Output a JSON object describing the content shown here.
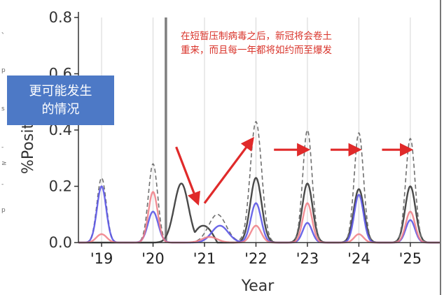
{
  "left_edge_chars": [
    "、",
    "p",
    "",
    "s",
    "-",
    "≥",
    "-",
    "p"
  ],
  "callout": {
    "line1": "更可能发生",
    "line2": "的情况"
  },
  "annotation": {
    "line1": "在短暂压制病毒之后，新冠将会卷土",
    "line2": "重来，而且每一年都将如约而至爆发"
  },
  "colors": {
    "gray": "#4a4a4a",
    "dashed": "#707070",
    "blue": "#5b57e6",
    "pink": "#f07b84",
    "arrow": "#e02a2a",
    "vline": "#7f7f7f",
    "callout_bg": "#4d79c6"
  },
  "chart_data": {
    "type": "line",
    "xlabel": "Year",
    "ylabel": "%Positive ILI",
    "xlim": [
      2018.55,
      2025.6
    ],
    "ylim": [
      0,
      0.8
    ],
    "y_ticks": [
      0.0,
      0.2,
      0.4,
      0.6,
      0.8
    ],
    "y_tick_labels": [
      "0.0",
      "0.2",
      "0.4",
      "0.6",
      "0.8"
    ],
    "x_ticks": [
      2019,
      2020,
      2021,
      2022,
      2023,
      2024,
      2025
    ],
    "x_tick_labels": [
      "'19",
      "'20",
      "'21",
      "'22",
      "'23",
      "'24",
      "'25"
    ],
    "vertical_marker": 2020.25,
    "grid": "vertical",
    "series": [
      {
        "color": "gray",
        "style": "solid",
        "peaks": [
          [
            2020.55,
            0.21,
            0.14
          ],
          [
            2022.0,
            0.23,
            0.11
          ],
          [
            2023.0,
            0.21,
            0.1
          ],
          [
            2024.0,
            0.19,
            0.1
          ],
          [
            2025.0,
            0.2,
            0.1
          ]
        ],
        "tail": [
          2020.7,
          2021.25,
          0.06
        ]
      },
      {
        "color": "dashed",
        "style": "dashed",
        "peaks": [
          [
            2019.0,
            0.23,
            0.09
          ],
          [
            2020.0,
            0.28,
            0.09
          ],
          [
            2021.25,
            0.1,
            0.17
          ],
          [
            2022.0,
            0.43,
            0.11
          ],
          [
            2023.0,
            0.4,
            0.09
          ],
          [
            2024.0,
            0.39,
            0.09
          ],
          [
            2025.0,
            0.37,
            0.09
          ]
        ]
      },
      {
        "color": "blue",
        "style": "solid",
        "peaks": [
          [
            2019.0,
            0.2,
            0.09
          ],
          [
            2020.0,
            0.11,
            0.1
          ],
          [
            2021.3,
            0.06,
            0.16
          ],
          [
            2022.0,
            0.14,
            0.1
          ],
          [
            2023.0,
            0.07,
            0.09
          ],
          [
            2024.0,
            0.17,
            0.09
          ],
          [
            2025.0,
            0.08,
            0.09
          ]
        ]
      },
      {
        "color": "pink",
        "style": "solid",
        "peaks": [
          [
            2019.0,
            0.03,
            0.1
          ],
          [
            2020.0,
            0.18,
            0.09
          ],
          [
            2021.1,
            0.02,
            0.15
          ],
          [
            2022.0,
            0.06,
            0.1
          ],
          [
            2023.0,
            0.14,
            0.09
          ],
          [
            2024.0,
            0.03,
            0.09
          ],
          [
            2025.0,
            0.11,
            0.09
          ]
        ]
      }
    ],
    "arrows": [
      {
        "from": [
          2020.45,
          0.34
        ],
        "to": [
          2020.85,
          0.15
        ]
      },
      {
        "from": [
          2021.0,
          0.14
        ],
        "to": [
          2021.9,
          0.36
        ]
      },
      {
        "from": [
          2022.35,
          0.33
        ],
        "to": [
          2022.95,
          0.33
        ]
      },
      {
        "from": [
          2023.45,
          0.33
        ],
        "to": [
          2023.95,
          0.33
        ]
      },
      {
        "from": [
          2024.45,
          0.33
        ],
        "to": [
          2024.95,
          0.33
        ]
      }
    ]
  }
}
